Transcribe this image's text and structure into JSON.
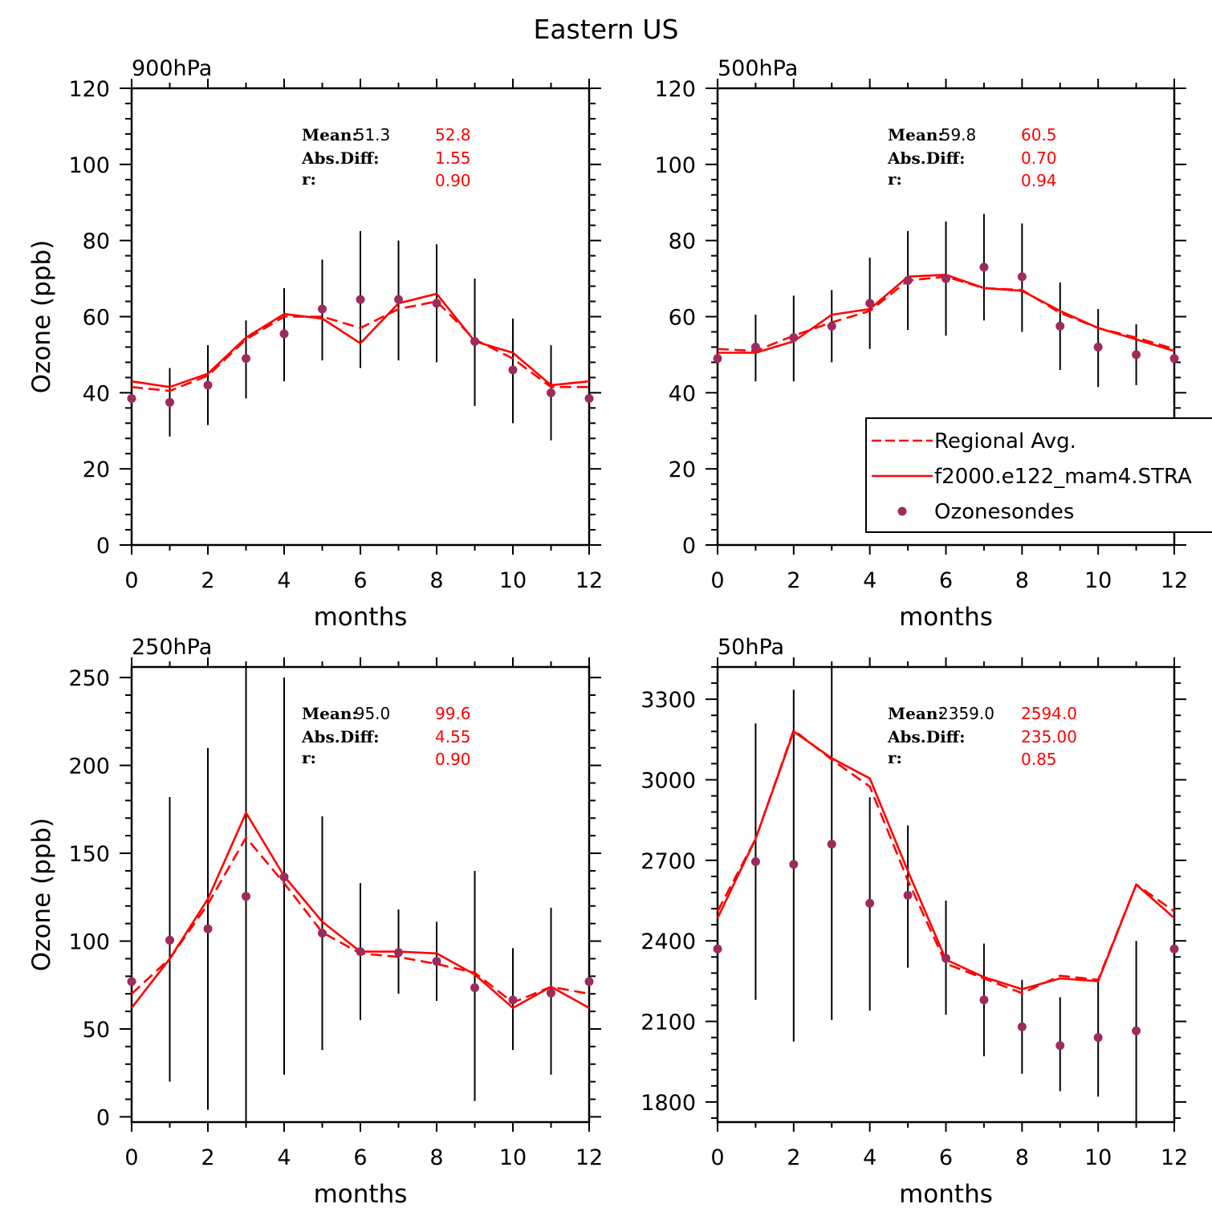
{
  "title": "Eastern US",
  "colors": {
    "model": "#ff0000",
    "obs_marker": "#9e2b5e",
    "obs_bar": "#000000",
    "axis": "#000000"
  },
  "legend": {
    "entries": [
      {
        "label": "Regional Avg.",
        "style": "dashed"
      },
      {
        "label": "f2000.e122_mam4.STRA",
        "style": "solid"
      },
      {
        "label": "Ozonesondes",
        "style": "marker"
      }
    ]
  },
  "chart_data": [
    {
      "type": "line",
      "panel_label": "900hPa",
      "xlabel": "months",
      "ylabel": "Ozone (ppb)",
      "xlim": [
        0,
        12
      ],
      "ylim": [
        0,
        120
      ],
      "xticks": [
        0,
        2,
        4,
        6,
        8,
        10,
        12
      ],
      "yticks": [
        0,
        20,
        40,
        60,
        80,
        100,
        120
      ],
      "stats": {
        "mean_label": "Mean:",
        "absdiff_label": "Abs.Diff:",
        "r_label": "r:",
        "mean_obs": "51.3",
        "mean_model": "52.8",
        "absdiff": "1.55",
        "r": "0.90"
      },
      "x": [
        0,
        1,
        2,
        3,
        4,
        5,
        6,
        7,
        8,
        9,
        10,
        11,
        12
      ],
      "series": [
        {
          "name": "Regional Avg.",
          "values": [
            41.5,
            40.5,
            44.5,
            54,
            60,
            60,
            57,
            62,
            64,
            54,
            49,
            41.5,
            41.5
          ]
        },
        {
          "name": "f2000.e122_mam4.STRA",
          "values": [
            43,
            41.5,
            45,
            54.5,
            60.7,
            59.5,
            53,
            63.5,
            66,
            53.5,
            50.5,
            42,
            43
          ]
        }
      ],
      "observations": {
        "name": "Ozonesondes",
        "values": [
          38.5,
          37.5,
          42,
          49,
          55.5,
          62,
          64.5,
          64.5,
          63.5,
          53.5,
          46,
          40,
          38.5
        ],
        "error_low": [
          null,
          28.5,
          31.5,
          38.5,
          43,
          48.5,
          46.5,
          48.5,
          48,
          36.5,
          32,
          27.5,
          null
        ],
        "error_high": [
          null,
          46.5,
          52.5,
          59,
          67.5,
          75,
          82.5,
          80,
          79,
          70,
          59.5,
          52.5,
          null
        ]
      }
    },
    {
      "type": "line",
      "panel_label": "500hPa",
      "xlabel": "months",
      "ylabel": "",
      "xlim": [
        0,
        12
      ],
      "ylim": [
        0,
        120
      ],
      "xticks": [
        0,
        2,
        4,
        6,
        8,
        10,
        12
      ],
      "yticks": [
        0,
        20,
        40,
        60,
        80,
        100,
        120
      ],
      "stats": {
        "mean_label": "Mean:",
        "absdiff_label": "Abs.Diff:",
        "r_label": "r:",
        "mean_obs": "59.8",
        "mean_model": "60.5",
        "absdiff": "0.70",
        "r": "0.94"
      },
      "x": [
        0,
        1,
        2,
        3,
        4,
        5,
        6,
        7,
        8,
        9,
        10,
        11,
        12
      ],
      "series": [
        {
          "name": "Regional Avg.",
          "values": [
            51.5,
            51,
            55,
            58.5,
            61.5,
            69.5,
            70.5,
            67.5,
            67,
            61,
            57,
            54.5,
            51.5
          ]
        },
        {
          "name": "f2000.e122_mam4.STRA",
          "values": [
            50.5,
            50.5,
            53.5,
            60.5,
            62,
            70.5,
            71,
            67.5,
            66.8,
            61.5,
            57,
            54,
            51
          ]
        }
      ],
      "observations": {
        "name": "Ozonesondes",
        "values": [
          49,
          52,
          54.5,
          57.5,
          63.5,
          69.5,
          70,
          73,
          70.5,
          57.5,
          52,
          50,
          49
        ],
        "error_low": [
          null,
          43,
          43,
          48,
          51.5,
          56.5,
          55,
          59,
          56,
          46,
          41.5,
          42,
          null
        ],
        "error_high": [
          null,
          60.5,
          65.5,
          67,
          75.5,
          82.5,
          85,
          87,
          84.5,
          69,
          62,
          58,
          null
        ]
      }
    },
    {
      "type": "line",
      "panel_label": "250hPa",
      "xlabel": "months",
      "ylabel": "Ozone (ppb)",
      "xlim": [
        0,
        12
      ],
      "ylim": [
        -3,
        256
      ],
      "xticks": [
        0,
        2,
        4,
        6,
        8,
        10,
        12
      ],
      "yticks": [
        0,
        50,
        100,
        150,
        200,
        250
      ],
      "stats": {
        "mean_label": "Mean:",
        "absdiff_label": "Abs.Diff:",
        "r_label": "r:",
        "mean_obs": "95.0",
        "mean_model": "99.6",
        "absdiff": "4.55",
        "r": "0.90"
      },
      "x": [
        0,
        1,
        2,
        3,
        4,
        5,
        6,
        7,
        8,
        9,
        10,
        11,
        12
      ],
      "series": [
        {
          "name": "Regional Avg.",
          "values": [
            70,
            90,
            121,
            159,
            133,
            105,
            93,
            91,
            87,
            82,
            65,
            74,
            70
          ]
        },
        {
          "name": "f2000.e122_mam4.STRA",
          "values": [
            62,
            90,
            124,
            173,
            137,
            111,
            94,
            94,
            93,
            81,
            62,
            74,
            62
          ]
        }
      ],
      "observations": {
        "name": "Ozonesondes",
        "values": [
          77,
          100.5,
          107,
          125.5,
          136.5,
          104.5,
          94,
          93.5,
          88.5,
          73.5,
          66.5,
          70.5,
          77
        ],
        "error_low": [
          null,
          20,
          4,
          -3,
          24,
          38,
          null,
          70,
          66,
          9,
          38,
          24,
          null
        ],
        "error_high": [
          null,
          182,
          210,
          256,
          250,
          171,
          null,
          118,
          111,
          140,
          96,
          119,
          null
        ],
        "error_low_6": 55,
        "error_high_6": 133
      }
    },
    {
      "type": "line",
      "panel_label": "50hPa",
      "xlabel": "months",
      "ylabel": "",
      "xlim": [
        0,
        12
      ],
      "ylim": [
        1725,
        3420
      ],
      "xticks": [
        0,
        2,
        4,
        6,
        8,
        10,
        12
      ],
      "yticks": [
        1800,
        2100,
        2400,
        2700,
        3000,
        3300
      ],
      "stats": {
        "mean_label": "Mean:",
        "absdiff_label": "Abs.Diff:",
        "r_label": "r:",
        "mean_obs": "2359.0",
        "mean_model": "2594.0",
        "absdiff": "235.00",
        "r": "0.85"
      },
      "x": [
        0,
        1,
        2,
        3,
        4,
        5,
        6,
        7,
        8,
        9,
        10,
        11,
        12
      ],
      "series": [
        {
          "name": "Regional Avg.",
          "values": [
            2510,
            2780,
            3185,
            3075,
            2975,
            2625,
            2315,
            2260,
            2205,
            2270,
            2255,
            2610,
            2510
          ]
        },
        {
          "name": "f2000.e122_mam4.STRA",
          "values": [
            2485,
            2780,
            3180,
            3080,
            3005,
            2660,
            2330,
            2265,
            2220,
            2260,
            2250,
            2610,
            2485
          ]
        }
      ],
      "observations": {
        "name": "Ozonesondes",
        "values": [
          2370,
          2695,
          2685,
          2760,
          2540,
          2570,
          2335,
          2180,
          2080,
          2010,
          2040,
          2065,
          2370
        ],
        "error_low": [
          null,
          2180,
          2025,
          2105,
          2140,
          2300,
          2125,
          1970,
          1905,
          1840,
          1820,
          1725,
          null
        ],
        "error_high": [
          null,
          3210,
          3335,
          3420,
          2935,
          2830,
          2550,
          2390,
          2255,
          2190,
          2260,
          2400,
          null
        ]
      }
    }
  ]
}
